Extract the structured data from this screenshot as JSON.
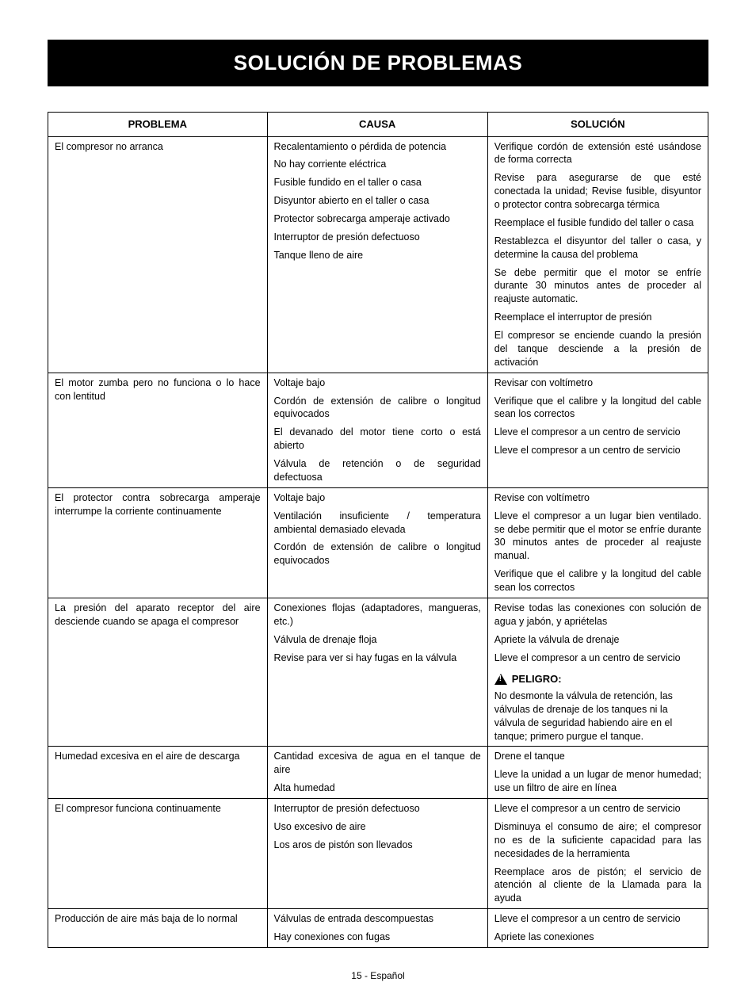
{
  "title": "SOLUCIÓN DE PROBLEMAS",
  "columns": {
    "problema": "PROBLEMA",
    "causa": "CAUSA",
    "solucion": "SOLUCIÓN"
  },
  "footer": "15 - Español",
  "warning_label": "PELIGRO:",
  "rows": [
    {
      "problema": "El compresor no arranca",
      "causas": [
        "Recalentamiento o pérdida de potencia",
        "No hay corriente eléctrica",
        "Fusible fundido en el taller o casa",
        "Disyuntor abierto en el taller o casa",
        "Protector sobrecarga amperaje activado",
        "Interruptor de presión defectuoso",
        "Tanque lleno de aire"
      ],
      "soluciones": [
        "Verifique cordón de extensión esté usándose de forma correcta",
        "Revise para asegurarse de que esté conectada la unidad; Revise fusible, disyuntor o protector contra sobrecarga térmica",
        "Reemplace el fusible fundido del taller o casa",
        "Restablezca el disyuntor del taller o casa, y determine la causa del problema",
        "Se debe permitir que el motor se enfríe durante 30 minutos antes de proceder al reajuste automatic.",
        "Reemplace el interruptor de presión",
        "El compresor se enciende cuando la presión del tanque desciende a la presión de activación"
      ]
    },
    {
      "problema": "El motor zumba pero no funciona o lo hace con lentitud",
      "causas": [
        "Voltaje bajo",
        "Cordón de extensión de calibre o longitud equivocados",
        "El devanado del motor tiene corto o está abierto",
        "Válvula de retención o de seguridad defectuosa"
      ],
      "soluciones": [
        "Revisar con voltímetro",
        "Verifique que el calibre y la longitud del cable sean los correctos",
        "Lleve el compresor a un centro de servicio",
        "Lleve el compresor a un centro de servicio"
      ]
    },
    {
      "problema": "El protector contra sobrecarga amperaje interrumpe la corriente continuamente",
      "causas": [
        "Voltaje bajo",
        "Ventilación insuficiente / temperatura ambiental demasiado elevada",
        "Cordón de extensión de calibre o longitud equivocados"
      ],
      "soluciones": [
        "Revise con voltímetro",
        "Lleve el compresor a un lugar bien ventilado. se debe permitir que el motor se enfríe durante 30 minutos antes de proceder al reajuste manual.",
        "Verifique que el calibre y la longitud del cable sean los correctos"
      ]
    },
    {
      "problema": "La presión del aparato receptor del aire desciende cuando se apaga el compresor",
      "causas": [
        "Conexiones flojas (adaptadores, mangueras, etc.)",
        "Válvula de drenaje floja",
        "Revise para ver si hay fugas en la válvula"
      ],
      "soluciones": [
        "Revise todas las conexiones con solución de agua y jabón, y apriételas",
        "Apriete la válvula de drenaje",
        "Lleve el compresor a un centro de servicio"
      ],
      "warning": "No desmonte la válvula de retención, las válvulas de drenaje de los tanques ni la válvula de seguridad habiendo aire en el tanque; primero purgue el tanque."
    },
    {
      "problema": "Humedad excesiva en el aire de descarga",
      "causas": [
        "Cantidad excesiva de agua en el tanque de aire",
        "Alta humedad"
      ],
      "soluciones": [
        "Drene el tanque",
        "Lleve la unidad a un lugar de menor humedad; use un filtro de aire en línea"
      ]
    },
    {
      "problema": "El compresor funciona continuamente",
      "causas": [
        "Interruptor de presión defectuoso",
        "Uso excesivo de aire",
        "Los aros de pistón son llevados"
      ],
      "soluciones": [
        "Lleve el compresor a un centro de servicio",
        "Disminuya el consumo de aire; el compresor no es de la suficiente capacidad para las necesidades de la herramienta",
        "Reemplace aros de pistón; el servicio de atención al cliente de la Llamada para la ayuda"
      ]
    },
    {
      "problema": "Producción de aire más baja de lo normal",
      "causas": [
        "Válvulas de entrada descompuestas",
        "Hay conexiones con fugas"
      ],
      "soluciones": [
        "Lleve el compresor a un centro de servicio",
        "Apriete las conexiones"
      ]
    }
  ]
}
